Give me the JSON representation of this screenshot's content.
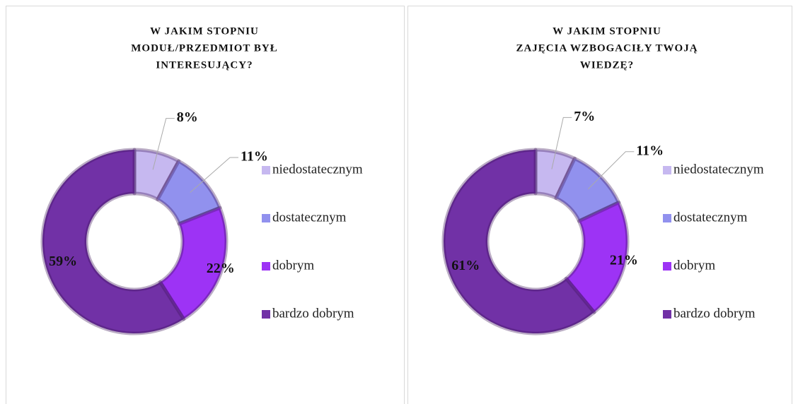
{
  "chart_data": [
    {
      "type": "donut",
      "title": [
        "W JAKIM STOPNIU",
        "MODUŁ/PRZEDMIOT BYŁ",
        "INTERESUJĄCY?"
      ],
      "categories": [
        "niedostatecznym",
        "dostatecznym",
        "dobrym",
        "bardzo dobrym"
      ],
      "values": [
        8,
        11,
        22,
        59
      ],
      "value_labels": [
        "8%",
        "11%",
        "22%",
        "59%"
      ],
      "colors": [
        "#c6b8f0",
        "#9191ee",
        "#9d33f5",
        "#7131a6"
      ],
      "legend": "right"
    },
    {
      "type": "donut",
      "title": [
        "W JAKIM STOPNIU",
        "ZAJĘCIA WZBOGACIŁY TWOJĄ",
        "WIEDZĘ?"
      ],
      "categories": [
        "niedostatecznym",
        "dostatecznym",
        "dobrym",
        "bardzo dobrym"
      ],
      "values": [
        7,
        11,
        21,
        61
      ],
      "value_labels": [
        "7%",
        "11%",
        "21%",
        "61%"
      ],
      "colors": [
        "#c6b8f0",
        "#9191ee",
        "#9d33f5",
        "#7131a6"
      ],
      "legend": "right"
    }
  ]
}
